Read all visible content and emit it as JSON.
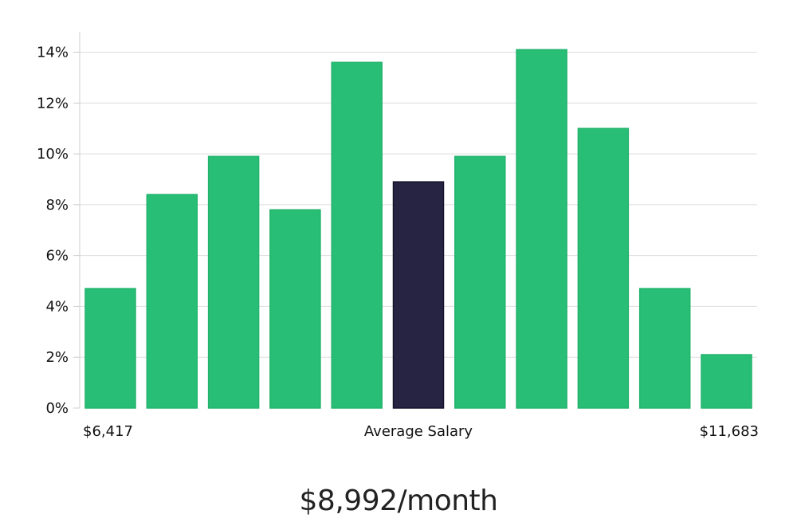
{
  "chart_data": {
    "type": "bar",
    "values": [
      4.7,
      8.4,
      9.9,
      7.8,
      13.6,
      8.9,
      9.9,
      14.1,
      11.0,
      4.7,
      2.1
    ],
    "highlight_index": 5,
    "ylim": [
      0,
      14.8
    ],
    "y_ticks": [
      "0%",
      "2%",
      "4%",
      "6%",
      "8%",
      "10%",
      "12%",
      "14%"
    ],
    "y_tick_values": [
      0,
      2,
      4,
      6,
      8,
      10,
      12,
      14
    ],
    "x_left_label": "$6,417",
    "x_center_label": "Average Salary",
    "x_right_label": "$11,683",
    "grid": true,
    "colors": {
      "bar": "#29be76",
      "highlight": "#272443",
      "grid": "#dddddd",
      "axis": "#cccccc"
    }
  },
  "headline": "$8,992/month"
}
